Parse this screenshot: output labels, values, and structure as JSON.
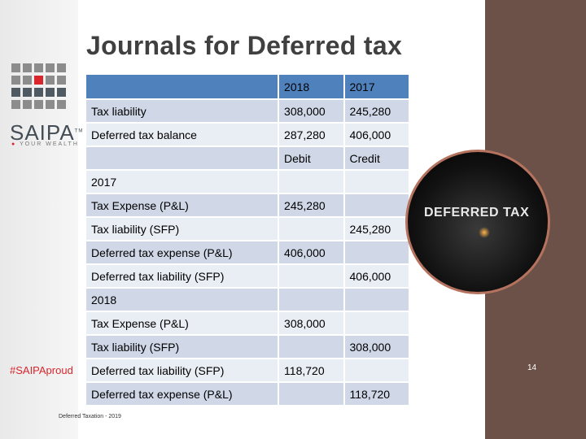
{
  "slide": {
    "title": "Journals for Deferred tax",
    "page_number": "14",
    "footer": "Deferred Taxation - 2019"
  },
  "branding": {
    "logo_text": "SAIPA",
    "logo_tm": "TM",
    "tagline": "YOUR WEALTH",
    "hashtag": "#SAIPAproud",
    "image_caption": "DEFERRED TAX",
    "colors": {
      "accent_red": "#d9262c",
      "table_header": "#4f81bd",
      "side_panel": "#6b5147"
    }
  },
  "table": {
    "header": [
      "",
      "2018",
      "2017"
    ],
    "rows": [
      [
        "Tax liability",
        "308,000",
        "245,280"
      ],
      [
        "Deferred tax balance",
        "287,280",
        "406,000"
      ],
      [
        "",
        "Debit",
        "Credit"
      ],
      [
        "2017",
        "",
        ""
      ],
      [
        "Tax Expense (P&L)",
        "245,280",
        ""
      ],
      [
        "Tax liability (SFP)",
        "",
        "245,280"
      ],
      [
        "Deferred tax expense (P&L)",
        "406,000",
        ""
      ],
      [
        "Deferred tax liability (SFP)",
        "",
        "406,000"
      ],
      [
        "2018",
        "",
        ""
      ],
      [
        "Tax Expense (P&L)",
        "308,000",
        ""
      ],
      [
        "Tax liability (SFP)",
        "",
        "308,000"
      ],
      [
        "Deferred tax liability (SFP)",
        "118,720",
        ""
      ],
      [
        "Deferred tax expense (P&L)",
        "",
        "118,720"
      ]
    ]
  }
}
